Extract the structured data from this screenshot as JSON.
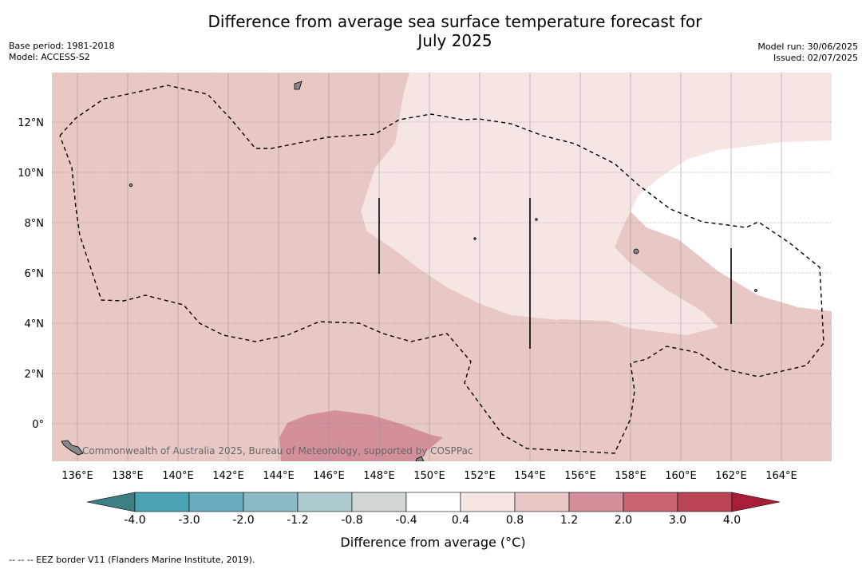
{
  "title_lines": [
    "Difference from average sea surface temperature forecast for",
    "July 2025"
  ],
  "meta_left": [
    "Base period: 1981-2018",
    "Model: ACCESS-S2"
  ],
  "meta_right": [
    "Model run: 30/06/2025",
    "Issued: 02/07/2025"
  ],
  "map": {
    "lon_labels": [
      "136°E",
      "138°E",
      "140°E",
      "142°E",
      "144°E",
      "146°E",
      "148°E",
      "150°E",
      "152°E",
      "154°E",
      "156°E",
      "158°E",
      "160°E",
      "162°E",
      "164°E"
    ],
    "lat_labels": [
      "12°N",
      "10°N",
      "8°N",
      "6°N",
      "4°N",
      "2°N",
      "0°"
    ],
    "copyright": "Commonwealth of Australia 2025, Bureau of Meteorology, supported by COSPPac",
    "background_color": "#e8c8c4"
  },
  "colorbar": {
    "labels": [
      "-4.0",
      "-3.0",
      "-2.0",
      "-1.2",
      "-0.8",
      "-0.4",
      "0.4",
      "0.8",
      "1.2",
      "2.0",
      "3.0",
      "4.0"
    ],
    "colors": [
      "#3e7f86",
      "#4ba3b4",
      "#6aacbd",
      "#8bb9c6",
      "#adcacf",
      "#d1d5d6",
      "#ffffff",
      "#f5e6e4",
      "#e8c8c4",
      "#d4909a",
      "#c96470",
      "#bb4454",
      "#a81e3a"
    ],
    "title": "Difference from average (°C)"
  },
  "footnote": "--  --  -- EEZ border V11 (Flanders Marine Institute, 2019)."
}
